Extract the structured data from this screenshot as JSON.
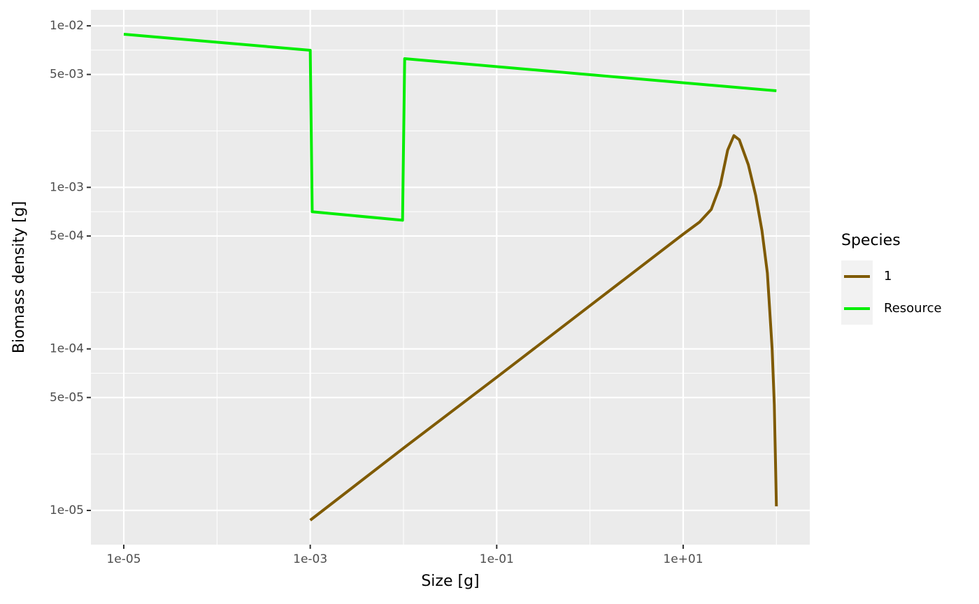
{
  "chart_data": {
    "type": "line",
    "x_label": "Size [g]",
    "y_label": "Biomass density [g]",
    "x_log": true,
    "y_log": true,
    "xlim": [
      4.44e-06,
      228
    ],
    "ylim": [
      6.14e-06,
      0.01257
    ],
    "xticks": [
      {
        "value": 1e-05,
        "label": "1e-05"
      },
      {
        "value": 0.001,
        "label": "1e-03"
      },
      {
        "value": 0.1,
        "label": "1e-01"
      },
      {
        "value": 10,
        "label": "1e+01"
      }
    ],
    "yticks": [
      {
        "value": 1e-05,
        "label": "1e-05"
      },
      {
        "value": 5e-05,
        "label": "5e-05"
      },
      {
        "value": 0.0001,
        "label": "1e-04"
      },
      {
        "value": 0.0005,
        "label": "5e-04"
      },
      {
        "value": 0.001,
        "label": "1e-03"
      },
      {
        "value": 0.005,
        "label": "5e-03"
      },
      {
        "value": 0.01,
        "label": "1e-02"
      }
    ],
    "minor_xticks": [
      0.0001,
      0.01,
      1,
      100
    ],
    "minor_yticks": [
      2.236e-05,
      7.071e-05,
      0.0002236,
      0.0007071,
      0.002236,
      0.007071
    ],
    "grid": true,
    "legend_title": "Species",
    "legend_position": "right",
    "series": [
      {
        "name": "1",
        "color": "#7f5a00",
        "x": [
          0.001,
          0.01,
          0.1,
          1,
          10,
          15,
          20,
          25,
          30,
          35,
          40,
          50,
          60,
          70,
          80,
          90,
          95,
          100
        ],
        "values": [
          8.7e-06,
          2.43e-05,
          6.67e-05,
          0.000185,
          0.000513,
          0.00061,
          0.00073,
          0.00103,
          0.0017,
          0.00209,
          0.00197,
          0.00138,
          0.00089,
          0.00054,
          0.000295,
          0.0001,
          4.5e-05,
          1.06e-05
        ]
      },
      {
        "name": "Resource",
        "color": "#00ee00",
        "x": [
          1e-05,
          0.001,
          0.00105,
          0.00977,
          0.0103,
          100
        ],
        "values": [
          0.00887,
          0.00706,
          0.000706,
          0.000626,
          0.00626,
          0.00396
        ]
      }
    ]
  }
}
